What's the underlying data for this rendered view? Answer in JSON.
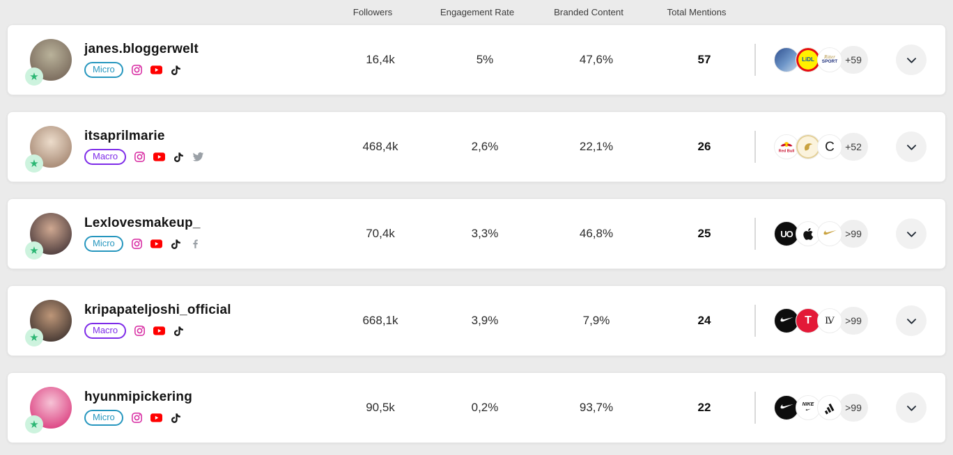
{
  "colors": {
    "page_bg": "#ebebeb",
    "card_bg": "#ffffff",
    "micro_accent": "#2596be",
    "macro_accent": "#7d2ae8",
    "star_green": "#2bb673",
    "star_bg": "#cdf3de",
    "instagram_pink": "#d6249f",
    "youtube_red": "#ff0000",
    "tiktok_black": "#161616",
    "muted_icon_gray": "#9aa0a6"
  },
  "tier_colors": {
    "Micro": "#2596be",
    "Macro": "#7d2ae8"
  },
  "header": {
    "columns": [
      "Followers",
      "Engagement Rate",
      "Branded Content",
      "Total Mentions"
    ]
  },
  "rows": [
    {
      "username": "janes.bloggerwelt",
      "tier": "Micro",
      "platforms": [
        "instagram",
        "youtube",
        "tiktok"
      ],
      "followers": "16,4k",
      "engagement_rate": "5%",
      "branded_content": "47,6%",
      "total_mentions": "57",
      "brands": [
        "photo-collage",
        "lidl",
        "ritter-sport"
      ],
      "more_count": "+59",
      "avatar_colors": [
        "#b9b29a",
        "#6b5a4e"
      ]
    },
    {
      "username": "itsaprilmarie",
      "tier": "Macro",
      "platforms": [
        "instagram",
        "youtube",
        "tiktok",
        "twitter"
      ],
      "followers": "468,4k",
      "engagement_rate": "2,6%",
      "branded_content": "22,1%",
      "total_mentions": "26",
      "brands": [
        "red-bull",
        "swarovski",
        "c-monogram"
      ],
      "more_count": "+52",
      "avatar_colors": [
        "#ecdccb",
        "#96755f"
      ]
    },
    {
      "username": "Lexlovesmakeup_",
      "tier": "Micro",
      "platforms": [
        "instagram",
        "youtube",
        "tiktok",
        "facebook"
      ],
      "followers": "70,4k",
      "engagement_rate": "3,3%",
      "branded_content": "46,8%",
      "total_mentions": "25",
      "brands": [
        "urban-outfitters",
        "apple",
        "gold-swoosh"
      ],
      "more_count": ">99",
      "avatar_colors": [
        "#cfa891",
        "#30242a"
      ]
    },
    {
      "username": "kripapateljoshi_official",
      "tier": "Macro",
      "platforms": [
        "instagram",
        "youtube",
        "tiktok"
      ],
      "followers": "668,1k",
      "engagement_rate": "3,9%",
      "branded_content": "7,9%",
      "total_mentions": "24",
      "brands": [
        "nike",
        "tesla",
        "louis-vuitton"
      ],
      "more_count": ">99",
      "avatar_colors": [
        "#bd9678",
        "#2a2323"
      ]
    },
    {
      "username": "hyunmipickering",
      "tier": "Micro",
      "platforms": [
        "instagram",
        "youtube",
        "tiktok"
      ],
      "followers": "90,5k",
      "engagement_rate": "0,2%",
      "branded_content": "93,7%",
      "total_mentions": "22",
      "brands": [
        "nike",
        "nike-wordmark",
        "adidas"
      ],
      "more_count": ">99",
      "avatar_colors": [
        "#f6c3d6",
        "#d6246e"
      ]
    }
  ]
}
